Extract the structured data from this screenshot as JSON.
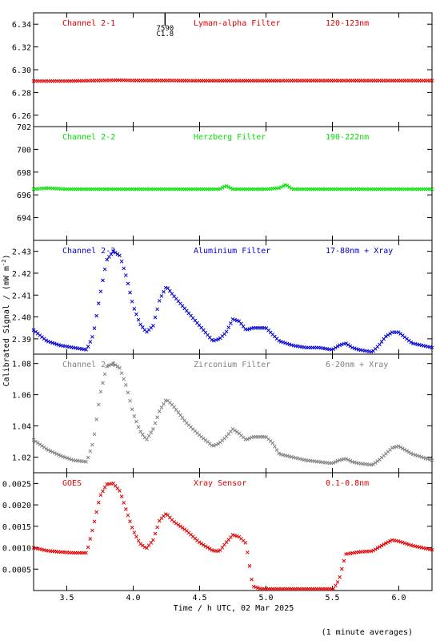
{
  "y_label": "Calibrated Signal / (mW m",
  "y_label_sup": "-2",
  "y_label_end": ")",
  "x_label": "Time / h UTC, 02 Mar 2025",
  "footnote": "(1 minute averages)",
  "x_ticks": [
    "3.5",
    "4.0",
    "4.5",
    "5.0",
    "5.5",
    "6.0"
  ],
  "marker": {
    "number": "7590",
    "code": "C1.8",
    "x": 4.24
  },
  "chart_data": [
    {
      "type": "scatter",
      "labels": {
        "channel": "Channel 2-1",
        "filter": "Lyman-alpha Filter",
        "band": "120-123nm"
      },
      "color": "#e00000",
      "xlim": [
        3.25,
        6.25
      ],
      "ylim": [
        6.25,
        6.35
      ],
      "y_ticks": [
        "6.26",
        "6.28",
        "6.30",
        "6.32",
        "6.34"
      ],
      "x": [
        3.25,
        3.5,
        3.75,
        3.9,
        4.0,
        4.25,
        4.5,
        4.75,
        5.0,
        5.25,
        5.5,
        5.75,
        6.0,
        6.25
      ],
      "y": [
        6.29,
        6.29,
        6.2905,
        6.2908,
        6.2905,
        6.2905,
        6.2903,
        6.2903,
        6.2903,
        6.2904,
        6.2904,
        6.2904,
        6.2904,
        6.2904
      ]
    },
    {
      "type": "scatter",
      "labels": {
        "channel": "Channel 2-2",
        "filter": "Herzberg Filter",
        "band": "190-222nm"
      },
      "color": "#00e000",
      "xlim": [
        3.25,
        6.25
      ],
      "ylim": [
        692.0,
        702.0
      ],
      "y_ticks": [
        "694",
        "696",
        "698",
        "700",
        "702"
      ],
      "x": [
        3.25,
        3.35,
        3.5,
        3.75,
        4.0,
        4.25,
        4.5,
        4.65,
        4.7,
        4.75,
        5.0,
        5.1,
        5.15,
        5.2,
        5.5,
        5.75,
        6.0,
        6.25
      ],
      "y": [
        696.5,
        696.6,
        696.5,
        696.5,
        696.5,
        696.5,
        696.5,
        696.5,
        696.8,
        696.5,
        696.5,
        696.6,
        696.9,
        696.5,
        696.5,
        696.5,
        696.5,
        696.5
      ]
    },
    {
      "type": "scatter",
      "labels": {
        "channel": "Channel 2-3",
        "filter": "Aluminium Filter",
        "band": "17-80nm + Xray"
      },
      "color": "#0000d0",
      "xlim": [
        3.25,
        6.25
      ],
      "ylim": [
        2.383,
        2.435
      ],
      "y_ticks": [
        "2.39",
        "2.40",
        "2.41",
        "2.42",
        "2.43"
      ],
      "x": [
        3.25,
        3.35,
        3.45,
        3.55,
        3.65,
        3.7,
        3.75,
        3.8,
        3.85,
        3.9,
        3.95,
        4.0,
        4.05,
        4.1,
        4.15,
        4.2,
        4.25,
        4.3,
        4.4,
        4.5,
        4.6,
        4.65,
        4.7,
        4.75,
        4.8,
        4.85,
        4.9,
        5.0,
        5.05,
        5.1,
        5.2,
        5.3,
        5.4,
        5.5,
        5.55,
        5.6,
        5.65,
        5.7,
        5.8,
        5.85,
        5.9,
        5.95,
        6.0,
        6.1,
        6.25
      ],
      "y": [
        2.394,
        2.389,
        2.387,
        2.386,
        2.385,
        2.392,
        2.41,
        2.426,
        2.43,
        2.428,
        2.418,
        2.405,
        2.397,
        2.393,
        2.396,
        2.408,
        2.414,
        2.41,
        2.403,
        2.396,
        2.389,
        2.39,
        2.393,
        2.399,
        2.398,
        2.394,
        2.395,
        2.395,
        2.392,
        2.389,
        2.387,
        2.386,
        2.386,
        2.385,
        2.387,
        2.388,
        2.386,
        2.385,
        2.384,
        2.387,
        2.391,
        2.393,
        2.393,
        2.388,
        2.386
      ]
    },
    {
      "type": "scatter",
      "labels": {
        "channel": "Channel 2-4",
        "filter": "Zirconium Filter",
        "band": "6-20nm + Xray"
      },
      "color": "#808080",
      "xlim": [
        3.25,
        6.25
      ],
      "ylim": [
        1.01,
        1.086
      ],
      "y_ticks": [
        "1.02",
        "1.04",
        "1.06",
        "1.08"
      ],
      "x": [
        3.25,
        3.35,
        3.45,
        3.55,
        3.65,
        3.7,
        3.75,
        3.8,
        3.85,
        3.9,
        3.95,
        4.0,
        4.05,
        4.1,
        4.15,
        4.2,
        4.25,
        4.3,
        4.4,
        4.5,
        4.6,
        4.65,
        4.7,
        4.75,
        4.8,
        4.85,
        4.9,
        5.0,
        5.05,
        5.1,
        5.2,
        5.3,
        5.4,
        5.5,
        5.55,
        5.6,
        5.65,
        5.7,
        5.8,
        5.85,
        5.9,
        5.95,
        6.0,
        6.1,
        6.25
      ],
      "y": [
        1.031,
        1.025,
        1.021,
        1.018,
        1.017,
        1.03,
        1.06,
        1.078,
        1.08,
        1.077,
        1.065,
        1.048,
        1.037,
        1.031,
        1.038,
        1.05,
        1.057,
        1.053,
        1.042,
        1.034,
        1.027,
        1.029,
        1.033,
        1.038,
        1.035,
        1.031,
        1.033,
        1.033,
        1.029,
        1.022,
        1.02,
        1.018,
        1.017,
        1.016,
        1.018,
        1.019,
        1.017,
        1.016,
        1.015,
        1.018,
        1.022,
        1.026,
        1.027,
        1.022,
        1.018
      ]
    },
    {
      "type": "scatter",
      "labels": {
        "channel": "GOES",
        "filter": "Xray Sensor",
        "band": "0.1-0.8nm"
      },
      "color": "#e00000",
      "xlim": [
        3.25,
        6.25
      ],
      "ylim": [
        0.0,
        0.00275
      ],
      "y_ticks": [
        "0.0005",
        "0.0010",
        "0.0015",
        "0.0020",
        "0.0025"
      ],
      "x": [
        3.25,
        3.35,
        3.45,
        3.55,
        3.65,
        3.7,
        3.75,
        3.8,
        3.85,
        3.9,
        3.95,
        4.0,
        4.05,
        4.1,
        4.15,
        4.2,
        4.25,
        4.3,
        4.4,
        4.5,
        4.6,
        4.65,
        4.7,
        4.75,
        4.8,
        4.85,
        4.9,
        5.0,
        5.2,
        5.4,
        5.5,
        5.55,
        5.6,
        5.7,
        5.8,
        5.9,
        5.95,
        6.0,
        6.1,
        6.25
      ],
      "y": [
        0.001,
        0.00093,
        0.0009,
        0.00088,
        0.00088,
        0.0015,
        0.0022,
        0.00248,
        0.0025,
        0.00232,
        0.00185,
        0.0014,
        0.0011,
        0.00098,
        0.00118,
        0.00165,
        0.0018,
        0.00162,
        0.0014,
        0.00112,
        0.00093,
        0.00092,
        0.00112,
        0.0013,
        0.00125,
        0.0011,
        0.0001,
        0.0,
        0.0,
        0.0,
        0.0,
        0.00025,
        0.00085,
        0.0009,
        0.00092,
        0.0011,
        0.00118,
        0.00115,
        0.00105,
        0.00095
      ]
    }
  ]
}
